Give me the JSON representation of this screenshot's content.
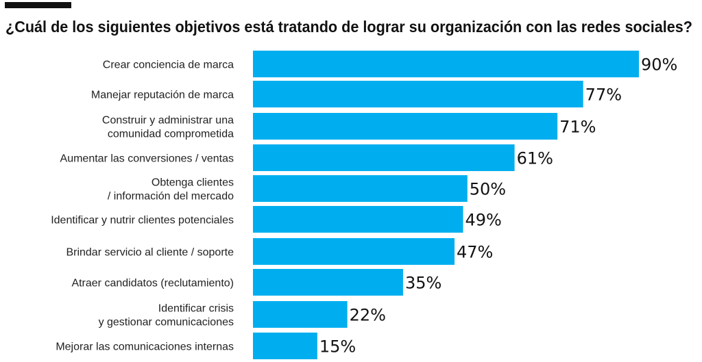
{
  "chart_data": {
    "type": "bar",
    "orientation": "horizontal",
    "title": "¿Cuál de los siguientes objetivos está tratando de lograr su organización con las redes sociales?",
    "categories": [
      [
        "Crear conciencia de marca"
      ],
      [
        "Manejar reputación de marca"
      ],
      [
        "Construir y administrar una",
        "comunidad comprometida"
      ],
      [
        "Aumentar las conversiones / ventas"
      ],
      [
        "Obtenga clientes",
        "/ información del mercado"
      ],
      [
        "Identificar y nutrir clientes potenciales"
      ],
      [
        "Brindar servicio al cliente / soporte"
      ],
      [
        "Atraer candidatos (reclutamiento)"
      ],
      [
        "Identificar crisis",
        "y gestionar comunicaciones"
      ],
      [
        "Mejorar las comunicaciones internas"
      ]
    ],
    "values": [
      90,
      77,
      71,
      61,
      50,
      49,
      47,
      35,
      22,
      15
    ],
    "value_labels": [
      "90%",
      "77%",
      "71%",
      "61%",
      "50%",
      "49%",
      "47%",
      "35%",
      "22%",
      "15%"
    ],
    "xlim": [
      0,
      90
    ],
    "grid": false,
    "bar_color": "#00AEEF",
    "accent_bar_color": "#111111"
  }
}
